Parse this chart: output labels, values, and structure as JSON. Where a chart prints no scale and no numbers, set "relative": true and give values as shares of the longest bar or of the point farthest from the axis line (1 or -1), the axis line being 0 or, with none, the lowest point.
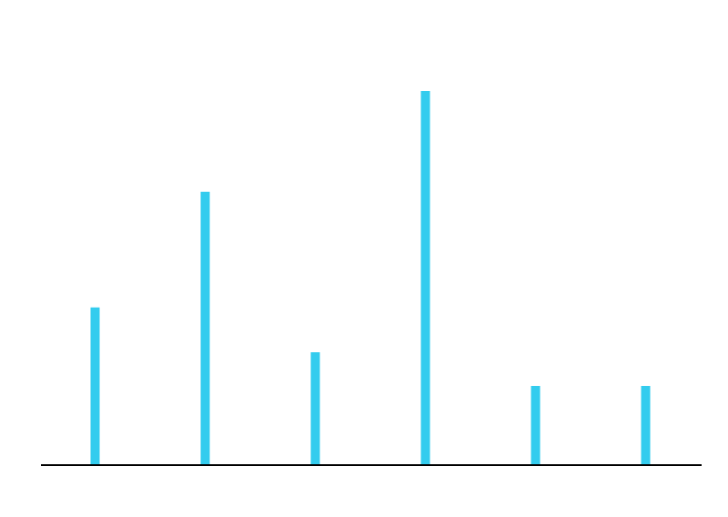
{
  "chart_data": {
    "type": "bar",
    "relative": true,
    "color": "#33ccee",
    "categories": [
      null,
      null,
      null,
      null,
      null,
      null
    ],
    "values": [
      0.42,
      0.73,
      0.3,
      1,
      0.21,
      0.21
    ]
  }
}
